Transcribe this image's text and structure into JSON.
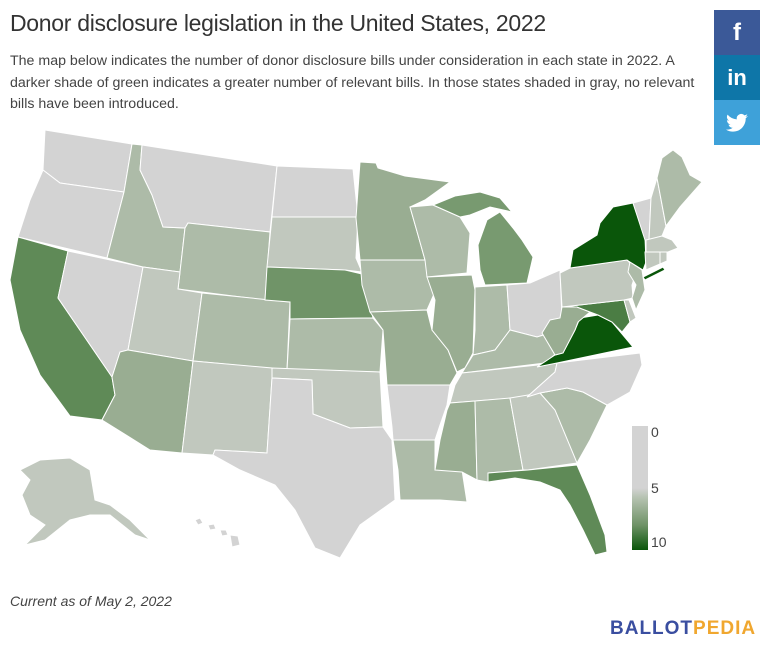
{
  "title": "Donor disclosure legislation in the United States, 2022",
  "description": "The map below indicates the number of donor disclosure bills under consideration in each state in 2022. A darker shade of green indicates a greater number of relevant bills. In those states shaded in gray, no relevant bills have been introduced.",
  "social": {
    "facebook": "f",
    "linkedin": "in",
    "twitter": "twitter-icon"
  },
  "legend": {
    "min_label": "0",
    "mid_label": "5",
    "max_label": "10",
    "min_color": "#d3d3d3",
    "max_color": "#0a560a"
  },
  "footer": {
    "as_of": "Current as of May 2, 2022",
    "logo_part1": "BALLOT",
    "logo_part2": "PEDIA",
    "logo_colors": [
      "#3a4ea0",
      "#f0a72f"
    ]
  },
  "states": {
    "WA": 0,
    "OR": 0,
    "CA": 6,
    "NV": 0,
    "ID": 2,
    "MT": 0,
    "WY": 2,
    "UT": 1,
    "CO": 2,
    "AZ": 3,
    "NM": 1,
    "ND": 0,
    "SD": 1,
    "NE": 5,
    "KS": 2,
    "OK": 1,
    "TX": 0,
    "MN": 3,
    "IA": 2,
    "MO": 3,
    "AR": 0,
    "LA": 2,
    "WI": 2,
    "IL": 3,
    "IN": 2,
    "MI": 4,
    "OH": 0,
    "KY": 2,
    "TN": 1,
    "MS": 3,
    "AL": 2,
    "GA": 1,
    "FL": 6,
    "SC": 2,
    "NC": 0,
    "VA": 10,
    "WV": 3,
    "MD": 7,
    "DE": 1,
    "PA": 1,
    "NJ": 2,
    "NY": 10,
    "VT": 0,
    "NH": 1,
    "ME": 2,
    "MA": 1,
    "CT": 1,
    "RI": 1,
    "AK": 1,
    "HI": 0
  }
}
